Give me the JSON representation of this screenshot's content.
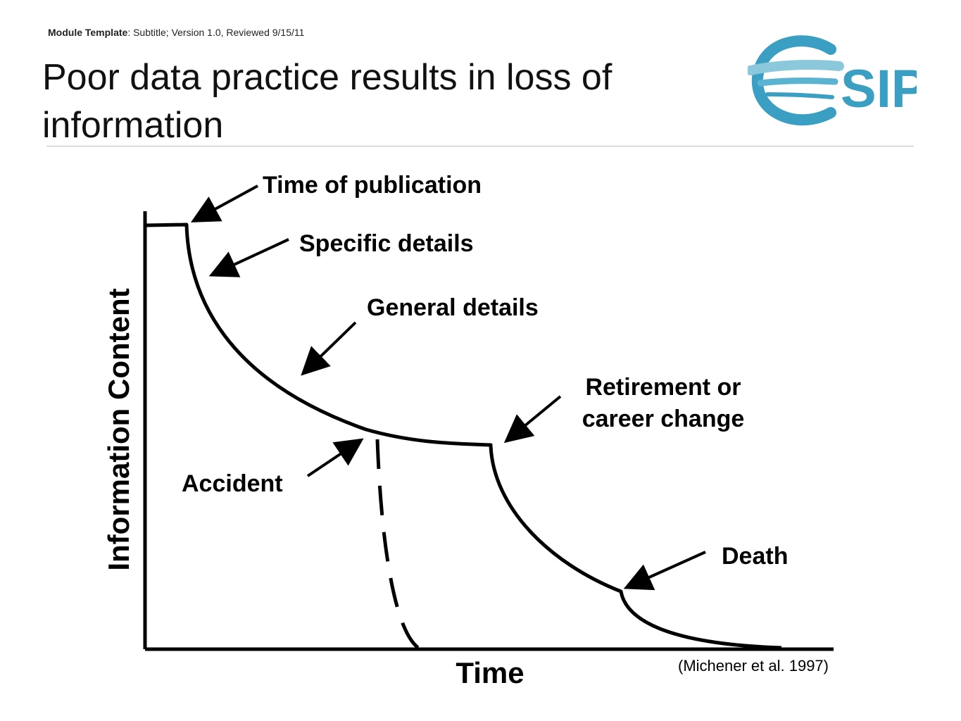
{
  "header": {
    "module_label": "Module Template",
    "module_rest": ": Subtitle; Version 1.0, Reviewed 9/15/11",
    "title_line1": "Poor data practice results in loss of",
    "title_line2": "information"
  },
  "logo": {
    "text": "SIP",
    "color": "#3a9fc3",
    "swoosh_color": "#8cc8dc"
  },
  "diagram": {
    "y_axis_label": "Information Content",
    "x_axis_label": "Time",
    "events": [
      {
        "id": "time-of-publication",
        "lines": [
          "Time of publication"
        ]
      },
      {
        "id": "specific-details",
        "lines": [
          "Specific details"
        ]
      },
      {
        "id": "general-details",
        "lines": [
          "General details"
        ]
      },
      {
        "id": "retirement",
        "lines": [
          "Retirement or",
          "career change"
        ]
      },
      {
        "id": "accident",
        "lines": [
          "Accident"
        ]
      },
      {
        "id": "death",
        "lines": [
          "Death"
        ]
      }
    ],
    "citation": "(Michener et al. 1997)"
  }
}
